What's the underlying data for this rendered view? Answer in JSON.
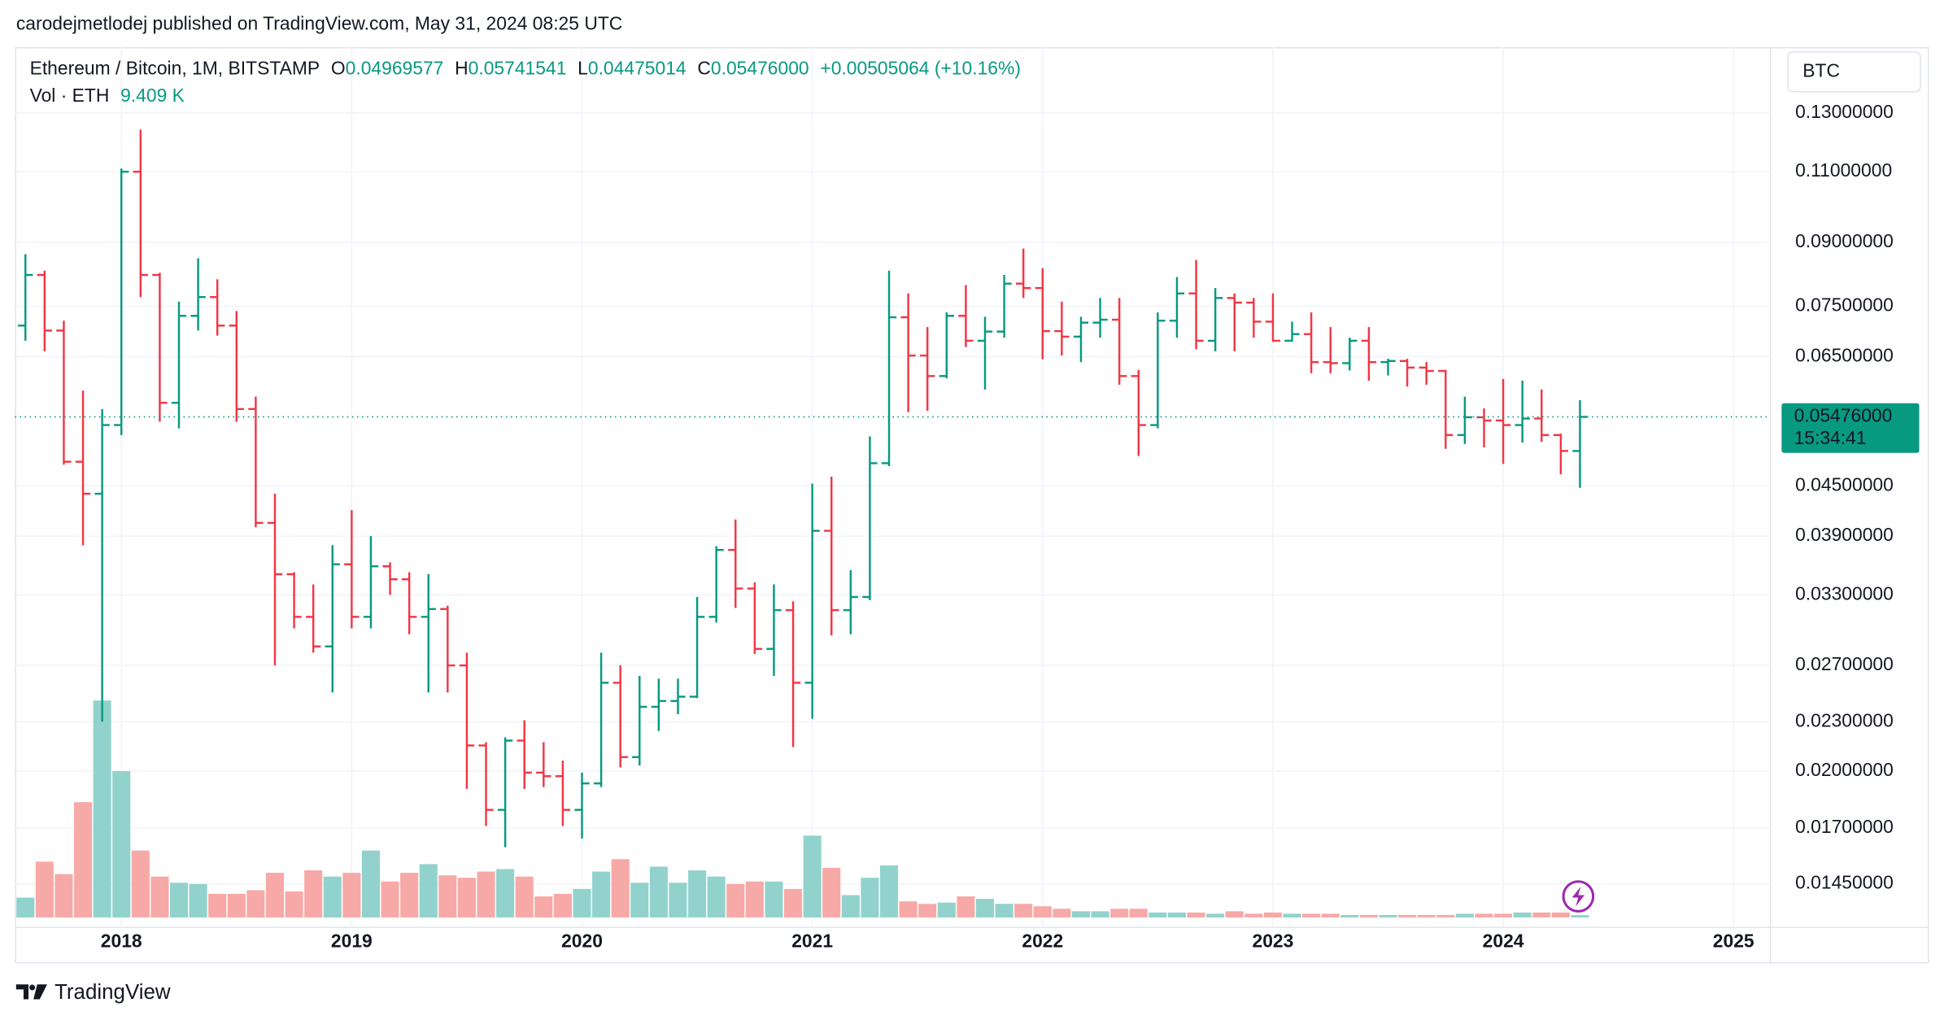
{
  "byline": "carodejmetlodej published on TradingView.com, May 31, 2024 08:25 UTC",
  "brand": "TradingView",
  "chart_data": {
    "type": "ohlc",
    "title": "Ethereum / Bitcoin, 1M, BITSTAMP",
    "legend": {
      "o": "O",
      "open": "0.04969577",
      "h": "H",
      "high": "0.05741541",
      "l": "L",
      "low": "0.04475014",
      "c": "C",
      "close": "0.05476000",
      "change": "+0.00505064 (+10.16%)",
      "vol_title": "Vol · ETH",
      "vol": "9.409 K"
    },
    "currency": "BTC",
    "last_price_label": "0.05476000",
    "countdown": "15:34:41",
    "log_scale": true,
    "grid": true,
    "up_color": "#089981",
    "down_color": "#f23645",
    "volume_up_color": "#92d2cc",
    "volume_down_color": "#f7a9a7",
    "ylim": [
      0.01318,
      0.1568
    ],
    "yticks": [
      {
        "value": 0.13,
        "label": "0.13000000"
      },
      {
        "value": 0.11,
        "label": "0.11000000"
      },
      {
        "value": 0.09,
        "label": "0.09000000"
      },
      {
        "value": 0.075,
        "label": "0.07500000"
      },
      {
        "value": 0.065,
        "label": "0.06500000"
      },
      {
        "value": 0.045,
        "label": "0.04500000"
      },
      {
        "value": 0.039,
        "label": "0.03900000"
      },
      {
        "value": 0.033,
        "label": "0.03300000"
      },
      {
        "value": 0.027,
        "label": "0.02700000"
      },
      {
        "value": 0.023,
        "label": "0.02300000"
      },
      {
        "value": 0.02,
        "label": "0.02000000"
      },
      {
        "value": 0.017,
        "label": "0.01700000"
      },
      {
        "value": 0.0145,
        "label": "0.01450000"
      }
    ],
    "volume_lim": [
      0,
      1000
    ],
    "categories": [
      null,
      null,
      null,
      null,
      null,
      "2018",
      null,
      null,
      null,
      null,
      null,
      null,
      null,
      null,
      null,
      null,
      null,
      "2019",
      null,
      null,
      null,
      null,
      null,
      null,
      null,
      null,
      null,
      null,
      null,
      "2020",
      null,
      null,
      null,
      null,
      null,
      null,
      null,
      null,
      null,
      null,
      null,
      "2021",
      null,
      null,
      null,
      null,
      null,
      null,
      null,
      null,
      null,
      null,
      null,
      "2022",
      null,
      null,
      null,
      null,
      null,
      null,
      null,
      null,
      null,
      null,
      null,
      "2023",
      null,
      null,
      null,
      null,
      null,
      null,
      null,
      null,
      null,
      null,
      null,
      "2024",
      null,
      null,
      null,
      null,
      null,
      null,
      null,
      null,
      null,
      null,
      null,
      "2025"
    ],
    "ohlc": [
      [
        0.071,
        0.087,
        0.068,
        0.082
      ],
      [
        0.082,
        0.083,
        0.066,
        0.07
      ],
      [
        0.07,
        0.072,
        0.0478,
        0.0482
      ],
      [
        0.0482,
        0.059,
        0.038,
        0.044
      ],
      [
        0.044,
        0.056,
        0.023,
        0.0535
      ],
      [
        0.0535,
        0.111,
        0.052,
        0.11
      ],
      [
        0.11,
        0.124,
        0.077,
        0.082
      ],
      [
        0.082,
        0.0825,
        0.054,
        0.057
      ],
      [
        0.057,
        0.076,
        0.053,
        0.073
      ],
      [
        0.073,
        0.086,
        0.07,
        0.077
      ],
      [
        0.077,
        0.081,
        0.069,
        0.071
      ],
      [
        0.071,
        0.074,
        0.054,
        0.056
      ],
      [
        0.056,
        0.058,
        0.04,
        0.0405
      ],
      [
        0.0405,
        0.044,
        0.027,
        0.035
      ],
      [
        0.035,
        0.0352,
        0.03,
        0.031
      ],
      [
        0.031,
        0.034,
        0.028,
        0.0285
      ],
      [
        0.0285,
        0.038,
        0.025,
        0.036
      ],
      [
        0.036,
        0.042,
        0.03,
        0.031
      ],
      [
        0.031,
        0.039,
        0.03,
        0.0358
      ],
      [
        0.0358,
        0.0362,
        0.033,
        0.0345
      ],
      [
        0.0345,
        0.0352,
        0.0295,
        0.031
      ],
      [
        0.031,
        0.035,
        0.025,
        0.0317
      ],
      [
        0.0317,
        0.032,
        0.025,
        0.027
      ],
      [
        0.027,
        0.028,
        0.019,
        0.0215
      ],
      [
        0.0215,
        0.0217,
        0.0171,
        0.0179
      ],
      [
        0.0179,
        0.022,
        0.0161,
        0.0218
      ],
      [
        0.0218,
        0.0231,
        0.019,
        0.0199
      ],
      [
        0.0199,
        0.0217,
        0.0191,
        0.0197
      ],
      [
        0.0197,
        0.0206,
        0.0171,
        0.0179
      ],
      [
        0.0179,
        0.0199,
        0.0165,
        0.0193
      ],
      [
        0.0193,
        0.028,
        0.0191,
        0.0257
      ],
      [
        0.0257,
        0.027,
        0.0202,
        0.0208
      ],
      [
        0.0208,
        0.0262,
        0.0203,
        0.024
      ],
      [
        0.024,
        0.026,
        0.0224,
        0.0244
      ],
      [
        0.0244,
        0.026,
        0.0235,
        0.0247
      ],
      [
        0.0247,
        0.0328,
        0.0246,
        0.031
      ],
      [
        0.031,
        0.0379,
        0.0305,
        0.0375
      ],
      [
        0.0375,
        0.0409,
        0.0318,
        0.0336
      ],
      [
        0.0336,
        0.0342,
        0.0279,
        0.0283
      ],
      [
        0.0283,
        0.034,
        0.0262,
        0.0316
      ],
      [
        0.0316,
        0.0324,
        0.0214,
        0.0257
      ],
      [
        0.0257,
        0.0453,
        0.0232,
        0.0396
      ],
      [
        0.0396,
        0.0462,
        0.0294,
        0.0316
      ],
      [
        0.0316,
        0.0354,
        0.0295,
        0.0328
      ],
      [
        0.0328,
        0.0518,
        0.0325,
        0.048
      ],
      [
        0.048,
        0.083,
        0.0476,
        0.0727
      ],
      [
        0.0727,
        0.0778,
        0.0555,
        0.0652
      ],
      [
        0.0652,
        0.0707,
        0.0557,
        0.0615
      ],
      [
        0.0615,
        0.0737,
        0.0611,
        0.073
      ],
      [
        0.073,
        0.0797,
        0.0668,
        0.068
      ],
      [
        0.068,
        0.0728,
        0.0592,
        0.0698
      ],
      [
        0.0698,
        0.082,
        0.0686,
        0.08
      ],
      [
        0.08,
        0.0884,
        0.0768,
        0.079
      ],
      [
        0.079,
        0.0836,
        0.0645,
        0.0699
      ],
      [
        0.0699,
        0.076,
        0.0652,
        0.0688
      ],
      [
        0.0688,
        0.0728,
        0.064,
        0.0716
      ],
      [
        0.0716,
        0.0768,
        0.0686,
        0.0722
      ],
      [
        0.0722,
        0.0768,
        0.06,
        0.0615
      ],
      [
        0.0615,
        0.0626,
        0.049,
        0.0535
      ],
      [
        0.0535,
        0.0737,
        0.053,
        0.072
      ],
      [
        0.072,
        0.0815,
        0.0686,
        0.0778
      ],
      [
        0.0778,
        0.0856,
        0.0664,
        0.068
      ],
      [
        0.068,
        0.079,
        0.066,
        0.0768
      ],
      [
        0.0768,
        0.0778,
        0.066,
        0.0758
      ],
      [
        0.0758,
        0.0768,
        0.0686,
        0.0718
      ],
      [
        0.0718,
        0.0778,
        0.0678,
        0.068
      ],
      [
        0.068,
        0.0718,
        0.0678,
        0.0693
      ],
      [
        0.0693,
        0.0737,
        0.062,
        0.064
      ],
      [
        0.064,
        0.0707,
        0.062,
        0.0638
      ],
      [
        0.0638,
        0.0686,
        0.0625,
        0.068
      ],
      [
        0.068,
        0.0707,
        0.0607,
        0.064
      ],
      [
        0.064,
        0.0646,
        0.0616,
        0.0642
      ],
      [
        0.0642,
        0.0646,
        0.0597,
        0.063
      ],
      [
        0.063,
        0.064,
        0.06,
        0.0624
      ],
      [
        0.0624,
        0.0626,
        0.05,
        0.052
      ],
      [
        0.052,
        0.058,
        0.0507,
        0.0547
      ],
      [
        0.0547,
        0.0561,
        0.0502,
        0.0542
      ],
      [
        0.0542,
        0.061,
        0.0479,
        0.0535
      ],
      [
        0.0535,
        0.0607,
        0.0509,
        0.0545
      ],
      [
        0.0545,
        0.0592,
        0.051,
        0.052
      ],
      [
        0.052,
        0.0522,
        0.0465,
        0.0497
      ],
      [
        0.04969577,
        0.05741541,
        0.04475014,
        0.05476
      ],
      null,
      null,
      null,
      null,
      null,
      null,
      null,
      null
    ],
    "volume": [
      80,
      225,
      175,
      465,
      875,
      590,
      270,
      165,
      140,
      135,
      95,
      95,
      110,
      180,
      105,
      190,
      165,
      180,
      270,
      145,
      180,
      215,
      170,
      160,
      185,
      195,
      165,
      85,
      95,
      115,
      185,
      235,
      140,
      205,
      140,
      190,
      165,
      135,
      145,
      145,
      115,
      330,
      200,
      90,
      160,
      210,
      65,
      55,
      60,
      85,
      75,
      55,
      55,
      45,
      35,
      25,
      25,
      35,
      35,
      20,
      20,
      20,
      15,
      25,
      15,
      20,
      15,
      15,
      15,
      10,
      10,
      10,
      10,
      10,
      10,
      15,
      15,
      15,
      20,
      20,
      20,
      9.409,
      null,
      null,
      null,
      null,
      null,
      null,
      null,
      null
    ]
  }
}
